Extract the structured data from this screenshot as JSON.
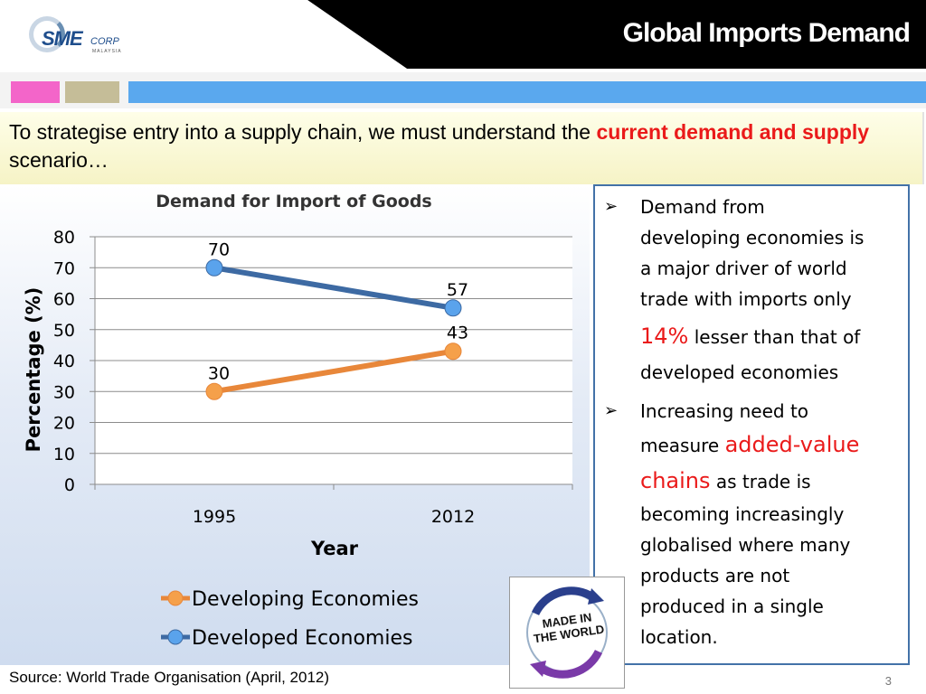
{
  "header": {
    "title": "Global Imports Demand"
  },
  "logo": {
    "sme": "SME",
    "corp": "CORP",
    "sub": "MALAYSIA"
  },
  "intro": {
    "text_a": "To strategise entry into a supply chain, we must understand the ",
    "text_highlight": "current demand and supply",
    "text_b": " scenario…"
  },
  "chart_data": {
    "type": "line",
    "title": "Demand for Import of Goods",
    "xlabel": "Year",
    "ylabel": "Percentage (%)",
    "categories": [
      "1995",
      "2012"
    ],
    "ylim": [
      0,
      80
    ],
    "yticks": [
      0,
      10,
      20,
      30,
      40,
      50,
      60,
      70,
      80
    ],
    "grid": true,
    "legend_position": "bottom",
    "series": [
      {
        "name": "Developing Economies",
        "values": [
          30,
          43
        ],
        "color": "#e8873a",
        "marker_color": "#f5a04a"
      },
      {
        "name": "Developed Economies",
        "values": [
          70,
          57
        ],
        "color": "#3d6aa3",
        "marker_color": "#5aa3ec"
      }
    ]
  },
  "bullets": {
    "b1_line1": "Demand from",
    "b1_line2": "developing economies is",
    "b1_line3": "a major driver of world",
    "b1_line4": "trade with imports only",
    "b1_pct": "14%",
    "b1_line5": " lesser than that of",
    "b1_line6": "developed economies",
    "b2_line1": "Increasing need to",
    "b2_line2": "measure ",
    "b2_red1": "added-value",
    "b2_red2": "chains",
    "b2_line3": " as trade is",
    "b2_line4": "becoming increasingly",
    "b2_line5": "globalised where many",
    "b2_line6": "products are not",
    "b2_line7": "produced in a single",
    "b2_line8": "location."
  },
  "stamp": {
    "line1": "MADE IN",
    "line2": "THE WORLD"
  },
  "footer": {
    "source": "Source: World Trade Organisation (April, 2012)",
    "page": "3"
  }
}
